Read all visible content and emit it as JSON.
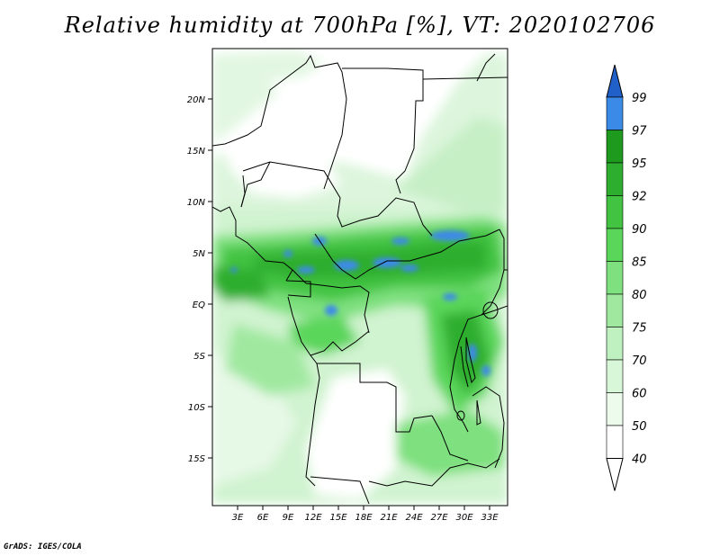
{
  "title": "Relative humidity at 700hPa [%], VT: 2020102706",
  "credit": "GrADS: IGES/COLA",
  "map": {
    "lat_ticks": [
      "20N",
      "15N",
      "10N",
      "5N",
      "EQ",
      "5S",
      "10S",
      "15S"
    ],
    "lon_ticks": [
      "3E",
      "6E",
      "9E",
      "12E",
      "15E",
      "18E",
      "21E",
      "24E",
      "27E",
      "30E",
      "33E"
    ]
  },
  "colorbar": {
    "labels": [
      "99",
      "97",
      "95",
      "92",
      "90",
      "85",
      "80",
      "75",
      "70",
      "60",
      "50",
      "40"
    ],
    "colors": [
      "#2060c8",
      "#3c8ae8",
      "#1e9a1e",
      "#2eae2e",
      "#42c442",
      "#5ad65a",
      "#7ee07e",
      "#a0e8a0",
      "#bff0bf",
      "#d8f6d8",
      "#ecfbec",
      "#ffffff"
    ]
  }
}
